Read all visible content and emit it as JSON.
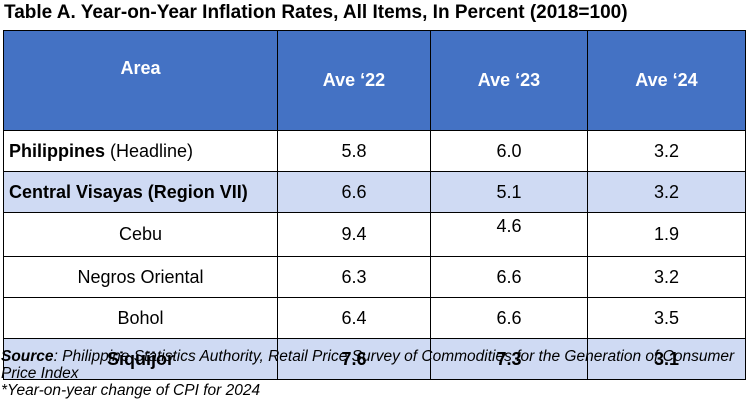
{
  "title": "Table A. Year-on-Year Inflation Rates, All Items, In Percent (2018=100)",
  "table": {
    "headers": [
      "Area",
      "Ave ‘22",
      "Ave ‘23",
      "Ave ‘24"
    ],
    "rows": [
      {
        "area_bold": "Philippines",
        "area_rest": " (Headline)",
        "v22": "5.8",
        "v23": "6.0",
        "v24": "3.2"
      },
      {
        "area_bold": "Central Visayas (Region VII)",
        "area_rest": "",
        "v22": "6.6",
        "v23": "5.1",
        "v24": "3.2"
      },
      {
        "area_bold": "",
        "area_rest": "Cebu",
        "v22": "9.4",
        "v23": "4.6",
        "v24": "1.9"
      },
      {
        "area_bold": "",
        "area_rest": "Negros Oriental",
        "v22": "6.3",
        "v23": "6.6",
        "v24": "3.2"
      },
      {
        "area_bold": "",
        "area_rest": "Bohol",
        "v22": "6.4",
        "v23": "6.6",
        "v24": "3.5"
      },
      {
        "area_bold": "Siquijor",
        "area_rest": "",
        "v22": "7.6",
        "v23": "7.3",
        "v24": "3.1"
      }
    ]
  },
  "notes": {
    "source_label": "Source",
    "source_text": ": Philippine Statistics Authority, Retail Price Survey of Commodities for the Generation of Consumer Price Index",
    "footnote": "*Year-on-year change of CPI for 2024"
  },
  "colors": {
    "header_bg": "#4472c4",
    "shade_bg": "#cfdaf3"
  }
}
